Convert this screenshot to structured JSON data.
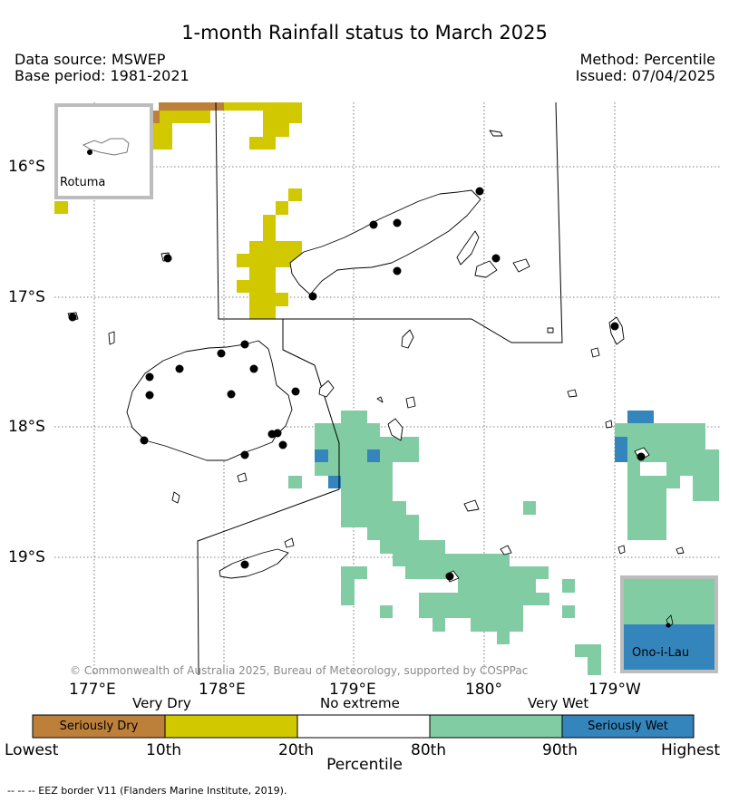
{
  "header": {
    "title": "1-month Rainfall status to March 2025",
    "data_source": "Data source: MSWEP",
    "base_period": "Base period: 1981-2021",
    "method": "Method: Percentile",
    "issued": "Issued: 07/04/2025"
  },
  "map": {
    "latitude_labels": [
      "16°S",
      "17°S",
      "18°S",
      "19°S"
    ],
    "longitude_labels": [
      "177°E",
      "178°E",
      "179°E",
      "180°",
      "179°W"
    ],
    "copyright": "© Commonwealth of Australia 2025, Bureau of Meteorology, supported by COSPPac",
    "insets": [
      {
        "name": "Rotuma"
      },
      {
        "name": "Ono-i-Lau"
      }
    ]
  },
  "legend": {
    "categories": [
      "Very Dry",
      "No extreme",
      "Very Wet"
    ],
    "classes": [
      {
        "label": "Seriously Dry",
        "color": "#bc803a"
      },
      {
        "label": "",
        "color": "#d2c800"
      },
      {
        "label": "",
        "color": "#ffffff"
      },
      {
        "label": "",
        "color": "#82cca4"
      },
      {
        "label": "Seriously Wet",
        "color": "#3485bc"
      }
    ],
    "breaks": [
      "Lowest",
      "10th",
      "20th",
      "80th",
      "90th",
      "Highest"
    ],
    "axis_label": "Percentile"
  },
  "footnote": "--  --  -- EEZ border V11 (Flanders Marine Institute, 2019)."
}
